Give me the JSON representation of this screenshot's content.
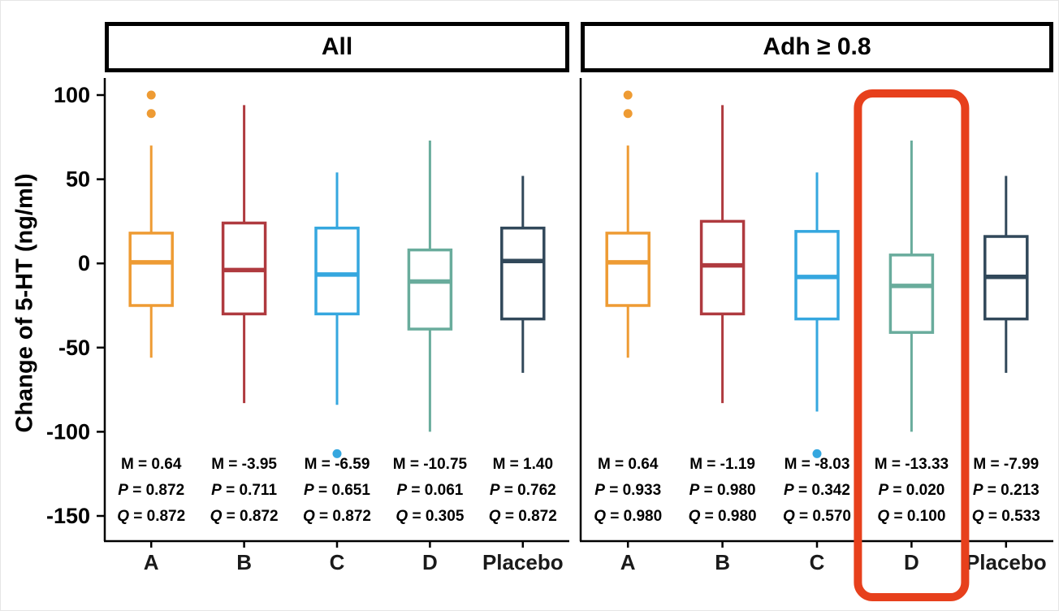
{
  "chart_data": {
    "type": "boxplot",
    "ylabel": "Change of 5-HT (ng/ml)",
    "ylim": [
      -165,
      110
    ],
    "yticks": [
      100,
      50,
      0,
      -50,
      -100,
      -150
    ],
    "groups": [
      "A",
      "B",
      "C",
      "D",
      "Placebo"
    ],
    "colors": {
      "A": "#EE9B33",
      "B": "#AF3A3F",
      "C": "#35A7DF",
      "D": "#69AC9C",
      "Placebo": "#31485A"
    },
    "highlight": {
      "panel_index": 1,
      "panel_title": "Adh ≥ 0.8",
      "group": "D",
      "color": "#E7401C"
    },
    "stat_row_labels": [
      "M",
      "P",
      "Q"
    ],
    "stat_display": {
      "italic_labels": [
        "P",
        "Q"
      ]
    },
    "panels": [
      {
        "title": "All",
        "boxes": [
          {
            "group": "A",
            "whisker_low": -56,
            "q1": -25,
            "median": 0.64,
            "q3": 18,
            "whisker_high": 70,
            "outliers": [
              100,
              89
            ],
            "stats": {
              "M": "0.64",
              "P": "0.872",
              "Q": "0.872"
            }
          },
          {
            "group": "B",
            "whisker_low": -83,
            "q1": -30,
            "median": -3.95,
            "q3": 24,
            "whisker_high": 94,
            "outliers": [],
            "stats": {
              "M": "-3.95",
              "P": "0.711",
              "Q": "0.872"
            }
          },
          {
            "group": "C",
            "whisker_low": -84,
            "q1": -30,
            "median": -6.59,
            "q3": 21,
            "whisker_high": 54,
            "outliers": [
              -113
            ],
            "stats": {
              "M": "-6.59",
              "P": "0.651",
              "Q": "0.872"
            }
          },
          {
            "group": "D",
            "whisker_low": -100,
            "q1": -39,
            "median": -10.75,
            "q3": 8,
            "whisker_high": 73,
            "outliers": [],
            "stats": {
              "M": "-10.75",
              "P": "0.061",
              "Q": "0.305"
            }
          },
          {
            "group": "Placebo",
            "whisker_low": -65,
            "q1": -33,
            "median": 1.4,
            "q3": 21,
            "whisker_high": 52,
            "outliers": [],
            "stats": {
              "M": "1.40",
              "P": "0.762",
              "Q": "0.872"
            }
          }
        ]
      },
      {
        "title": "Adh ≥ 0.8",
        "boxes": [
          {
            "group": "A",
            "whisker_low": -56,
            "q1": -25,
            "median": 0.64,
            "q3": 18,
            "whisker_high": 70,
            "outliers": [
              100,
              89
            ],
            "stats": {
              "M": "0.64",
              "P": "0.933",
              "Q": "0.980"
            }
          },
          {
            "group": "B",
            "whisker_low": -83,
            "q1": -30,
            "median": -1.19,
            "q3": 25,
            "whisker_high": 94,
            "outliers": [],
            "stats": {
              "M": "-1.19",
              "P": "0.980",
              "Q": "0.980"
            }
          },
          {
            "group": "C",
            "whisker_low": -88,
            "q1": -33,
            "median": -8.03,
            "q3": 19,
            "whisker_high": 54,
            "outliers": [
              -113
            ],
            "stats": {
              "M": "-8.03",
              "P": "0.342",
              "Q": "0.570"
            }
          },
          {
            "group": "D",
            "whisker_low": -100,
            "q1": -41,
            "median": -13.33,
            "q3": 5,
            "whisker_high": 73,
            "outliers": [],
            "stats": {
              "M": "-13.33",
              "P": "0.020",
              "Q": "0.100"
            }
          },
          {
            "group": "Placebo",
            "whisker_low": -65,
            "q1": -33,
            "median": -7.99,
            "q3": 16,
            "whisker_high": 52,
            "outliers": [],
            "stats": {
              "M": "-7.99",
              "P": "0.213",
              "Q": "0.533"
            }
          }
        ]
      }
    ]
  }
}
